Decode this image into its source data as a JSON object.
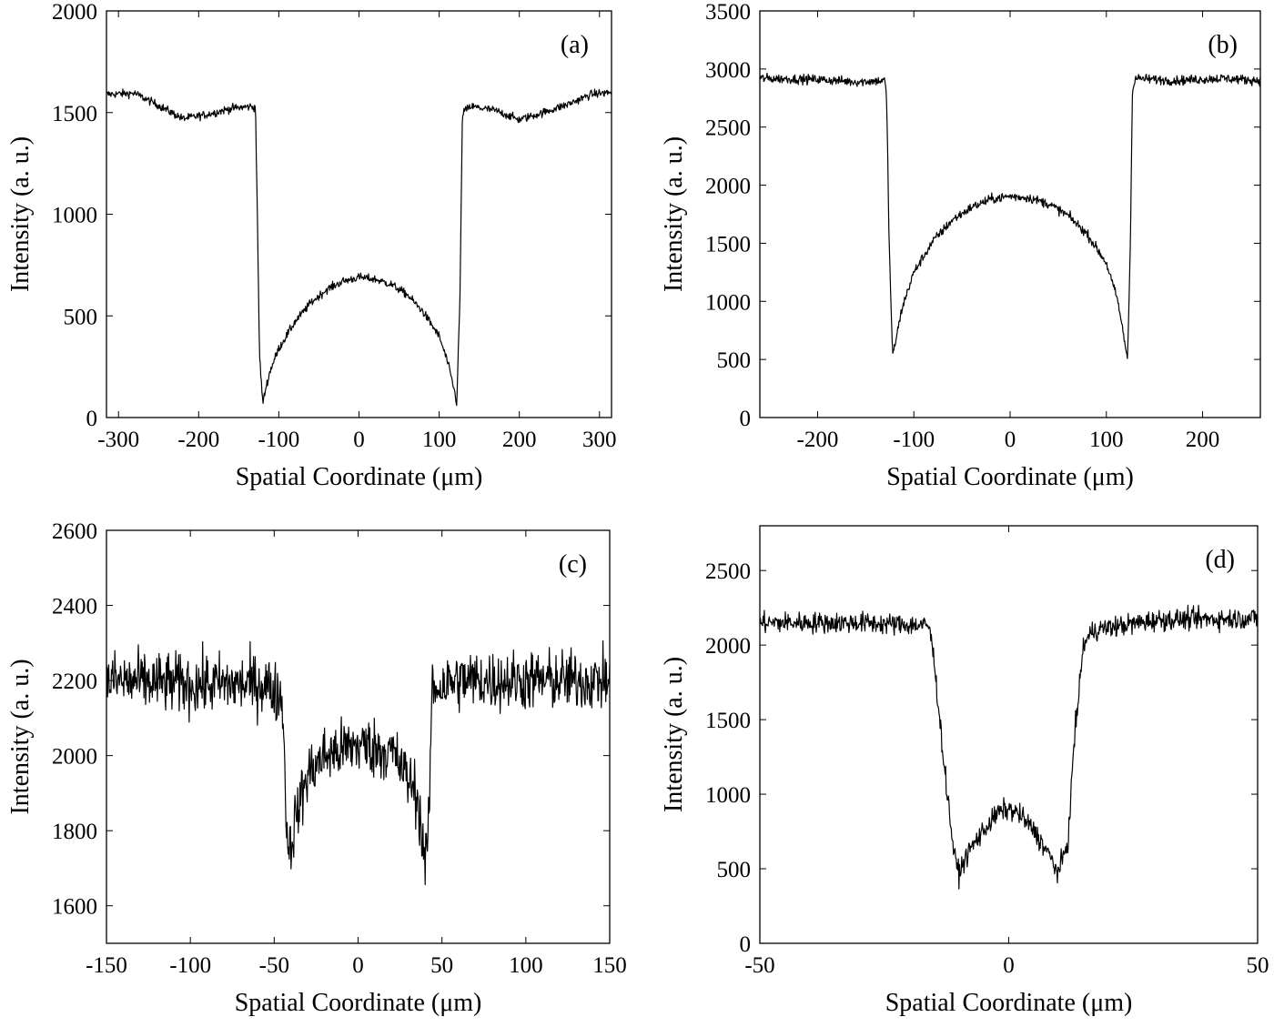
{
  "chart_data": [
    {
      "type": "line",
      "panel_label": "(a)",
      "xlabel": "Spatial Coordinate (μm)",
      "ylabel": "Intensity (a. u.)",
      "xlim": [
        -315,
        315
      ],
      "ylim": [
        0,
        2000
      ],
      "xticks": [
        -300,
        -200,
        -100,
        0,
        100,
        200,
        300
      ],
      "yticks": [
        0,
        500,
        1000,
        1500,
        2000
      ],
      "grid": false,
      "noise": 20,
      "series": [
        {
          "points": [
            [
              -315,
              1590
            ],
            [
              -280,
              1595
            ],
            [
              -250,
              1535
            ],
            [
              -220,
              1470
            ],
            [
              -190,
              1490
            ],
            [
              -160,
              1520
            ],
            [
              -135,
              1530
            ],
            [
              -129,
              1525
            ],
            [
              -124,
              300
            ],
            [
              -120,
              70
            ],
            [
              -116,
              150
            ],
            [
              -110,
              240
            ],
            [
              -100,
              340
            ],
            [
              -80,
              470
            ],
            [
              -60,
              565
            ],
            [
              -40,
              630
            ],
            [
              -20,
              670
            ],
            [
              0,
              690
            ],
            [
              20,
              680
            ],
            [
              40,
              655
            ],
            [
              60,
              605
            ],
            [
              80,
              520
            ],
            [
              100,
              400
            ],
            [
              110,
              280
            ],
            [
              118,
              150
            ],
            [
              122,
              70
            ],
            [
              126,
              600
            ],
            [
              129,
              1500
            ],
            [
              140,
              1530
            ],
            [
              170,
              1510
            ],
            [
              200,
              1465
            ],
            [
              230,
              1500
            ],
            [
              260,
              1540
            ],
            [
              290,
              1590
            ],
            [
              315,
              1600
            ]
          ]
        }
      ]
    },
    {
      "type": "line",
      "panel_label": "(b)",
      "xlabel": "Spatial Coordinate (μm)",
      "ylabel": "Intensity (a. u.)",
      "xlim": [
        -260,
        260
      ],
      "ylim": [
        0,
        3500
      ],
      "xticks": [
        -200,
        -100,
        0,
        100,
        200
      ],
      "yticks": [
        0,
        500,
        1000,
        1500,
        2000,
        2500,
        3000,
        3500
      ],
      "grid": false,
      "noise": 40,
      "series": [
        {
          "points": [
            [
              -260,
              2920
            ],
            [
              -200,
              2910
            ],
            [
              -160,
              2890
            ],
            [
              -130,
              2900
            ],
            [
              -128,
              2700
            ],
            [
              -126,
              1600
            ],
            [
              -122,
              520
            ],
            [
              -118,
              700
            ],
            [
              -112,
              950
            ],
            [
              -100,
              1250
            ],
            [
              -80,
              1520
            ],
            [
              -60,
              1700
            ],
            [
              -40,
              1810
            ],
            [
              -20,
              1880
            ],
            [
              0,
              1905
            ],
            [
              20,
              1890
            ],
            [
              40,
              1840
            ],
            [
              60,
              1740
            ],
            [
              80,
              1580
            ],
            [
              100,
              1330
            ],
            [
              112,
              1000
            ],
            [
              118,
              700
            ],
            [
              122,
              510
            ],
            [
              125,
              1500
            ],
            [
              127,
              2800
            ],
            [
              130,
              2920
            ],
            [
              170,
              2900
            ],
            [
              220,
              2920
            ],
            [
              260,
              2900
            ]
          ]
        }
      ]
    },
    {
      "type": "line",
      "panel_label": "(c)",
      "xlabel": "Spatial Coordinate (μm)",
      "ylabel": "Intensity (a. u.)",
      "xlim": [
        -150,
        150
      ],
      "ylim": [
        1500,
        2600
      ],
      "xticks": [
        -150,
        -100,
        -50,
        0,
        50,
        100,
        150
      ],
      "yticks": [
        1600,
        1800,
        2000,
        2200,
        2400,
        2600
      ],
      "grid": false,
      "noise": 80,
      "series": [
        {
          "points": [
            [
              -150,
              2200
            ],
            [
              -100,
              2190
            ],
            [
              -55,
              2190
            ],
            [
              -45,
              2150
            ],
            [
              -43,
              1850
            ],
            [
              -41,
              1740
            ],
            [
              -38,
              1820
            ],
            [
              -30,
              1950
            ],
            [
              -20,
              2000
            ],
            [
              0,
              2030
            ],
            [
              20,
              2010
            ],
            [
              35,
              1900
            ],
            [
              40,
              1720
            ],
            [
              42,
              1780
            ],
            [
              44,
              2180
            ],
            [
              60,
              2200
            ],
            [
              100,
              2200
            ],
            [
              150,
              2200
            ]
          ]
        }
      ]
    },
    {
      "type": "line",
      "panel_label": "(d)",
      "xlabel": "Spatial Coordinate (μm)",
      "ylabel": "Intensity (a. u.)",
      "xlim": [
        -50,
        50
      ],
      "ylim": [
        0,
        2800
      ],
      "xticks": [
        -50,
        0,
        50
      ],
      "yticks": [
        0,
        500,
        1000,
        1500,
        2000,
        2500
      ],
      "grid": false,
      "noise": 70,
      "series": [
        {
          "points": [
            [
              -50,
              2150
            ],
            [
              -30,
              2150
            ],
            [
              -16,
              2130
            ],
            [
              -15,
              1900
            ],
            [
              -13,
              1200
            ],
            [
              -11,
              600
            ],
            [
              -10,
              470
            ],
            [
              -8,
              620
            ],
            [
              -5,
              760
            ],
            [
              -2,
              880
            ],
            [
              0,
              900
            ],
            [
              2,
              870
            ],
            [
              5,
              760
            ],
            [
              8,
              600
            ],
            [
              10,
              470
            ],
            [
              12,
              700
            ],
            [
              13,
              1300
            ],
            [
              15,
              2000
            ],
            [
              17,
              2100
            ],
            [
              30,
              2170
            ],
            [
              50,
              2180
            ]
          ]
        }
      ]
    }
  ]
}
